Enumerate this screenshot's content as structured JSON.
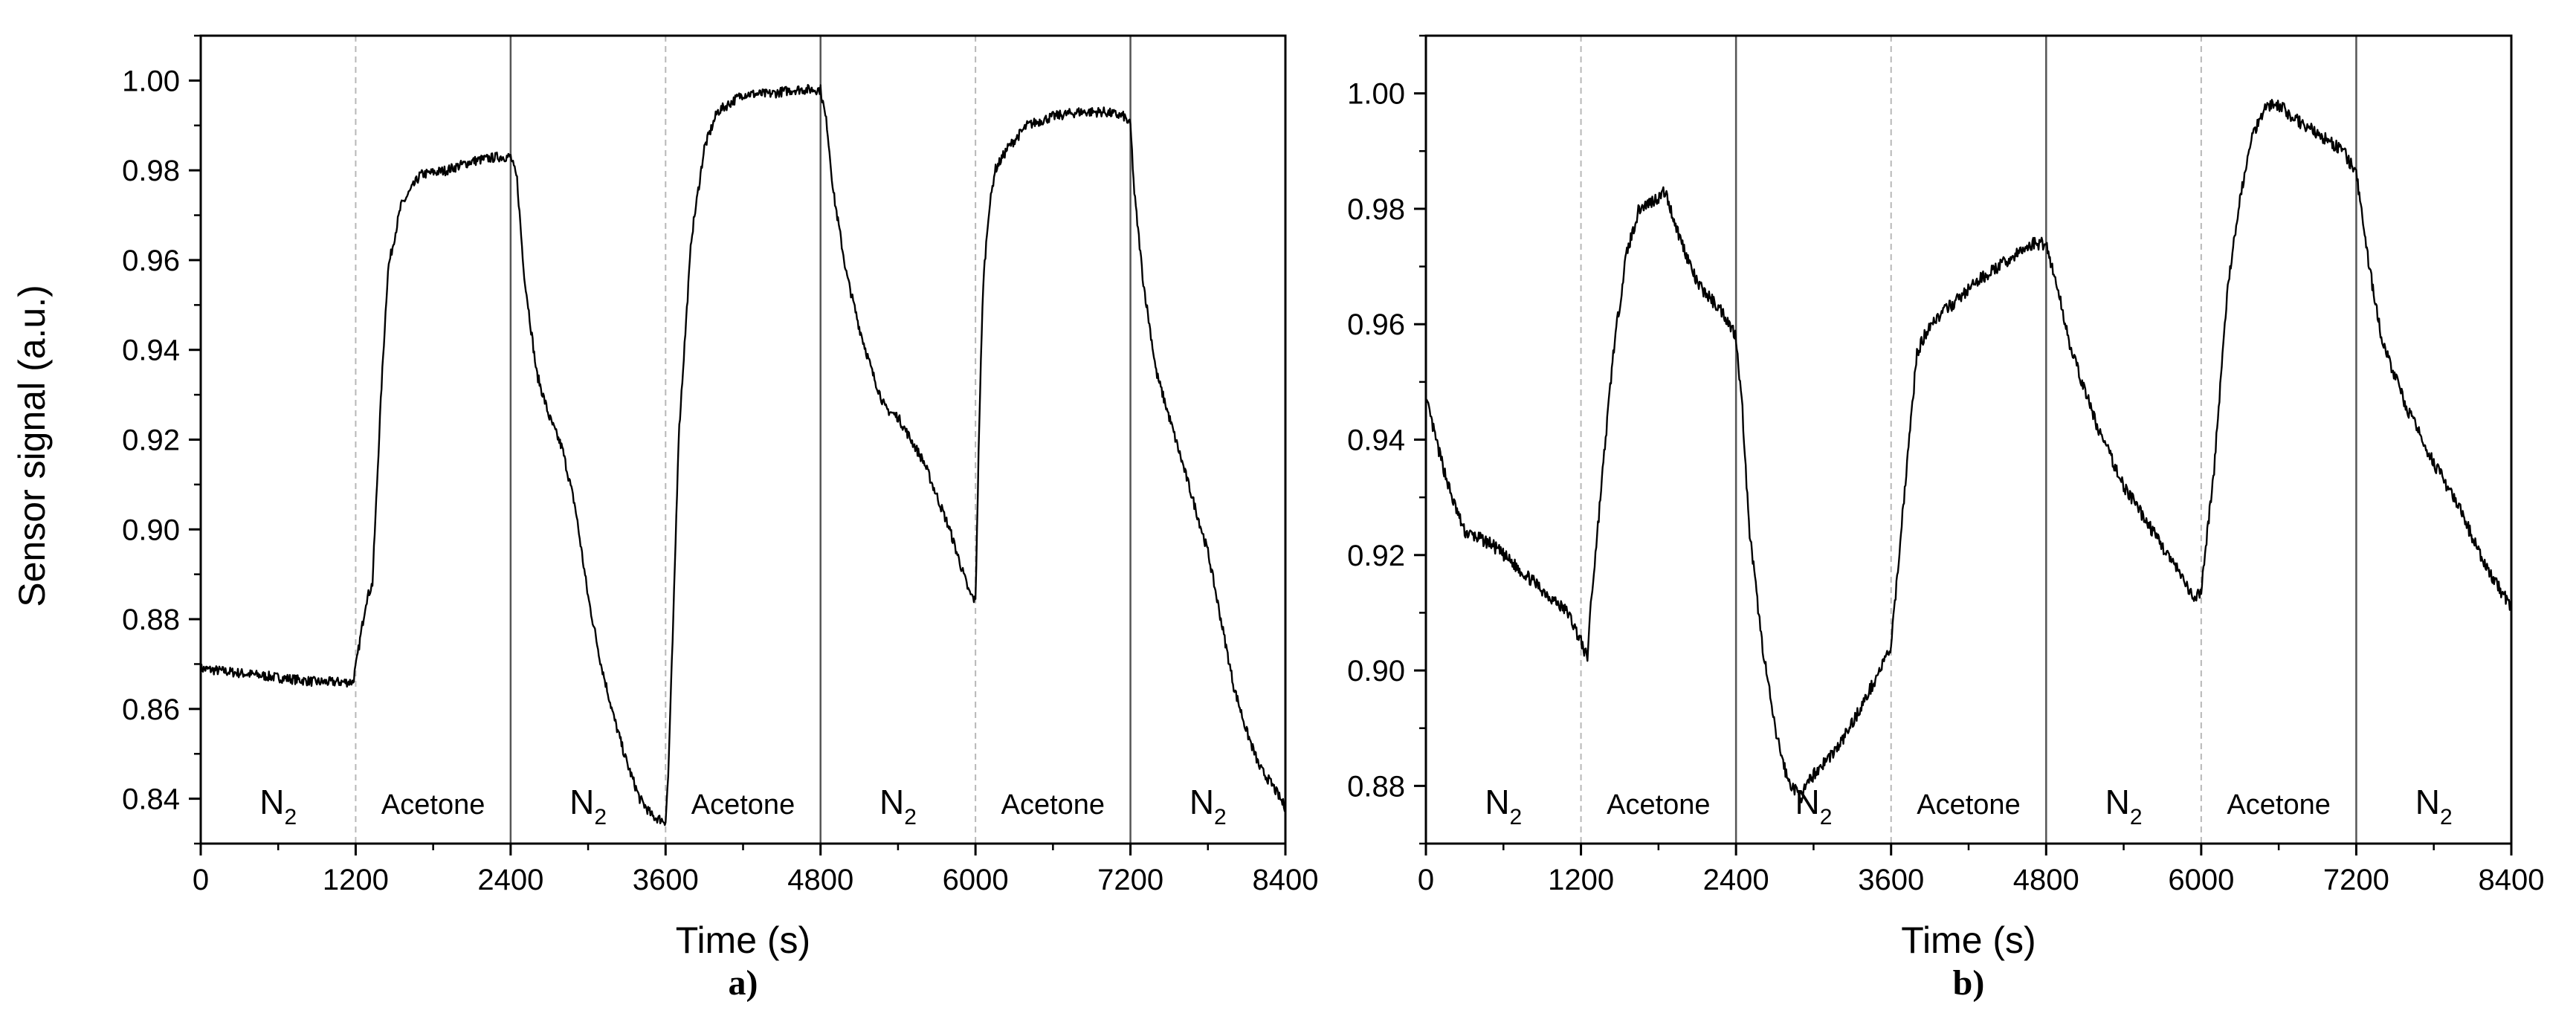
{
  "figure": {
    "y_axis_label": "Sensor signal (a.u.)"
  },
  "chart_data": [
    {
      "type": "line",
      "panel_label": "a)",
      "xlabel": "Time (s)",
      "ylabel": "Sensor signal (a.u.)",
      "xlim": [
        0,
        8400
      ],
      "ylim": [
        0.83,
        1.01
      ],
      "x_ticks": [
        0,
        1200,
        2400,
        3600,
        4800,
        6000,
        7200,
        8400
      ],
      "x_tick_labels": [
        "0",
        "1200",
        "2400",
        "3600",
        "4800",
        "6000",
        "7200",
        "8400"
      ],
      "y_ticks": [
        0.84,
        0.86,
        0.88,
        0.9,
        0.92,
        0.94,
        0.96,
        0.98,
        1.0
      ],
      "y_tick_labels": [
        "0.84",
        "0.86",
        "0.88",
        "0.90",
        "0.92",
        "0.94",
        "0.96",
        "0.98",
        "1.00"
      ],
      "grid": false,
      "dashed_vlines": [
        1200,
        3600,
        6000
      ],
      "solid_vlines": [
        2400,
        4800,
        7200
      ],
      "segments": [
        {
          "gas": "N",
          "sub": "2",
          "start": 0,
          "end": 1200
        },
        {
          "gas": "Acetone",
          "sub": "",
          "start": 1200,
          "end": 2400
        },
        {
          "gas": "N",
          "sub": "2",
          "start": 2400,
          "end": 3600
        },
        {
          "gas": "Acetone",
          "sub": "",
          "start": 3600,
          "end": 4800
        },
        {
          "gas": "N",
          "sub": "2",
          "start": 4800,
          "end": 6000
        },
        {
          "gas": "Acetone",
          "sub": "",
          "start": 6000,
          "end": 7200
        },
        {
          "gas": "N",
          "sub": "2",
          "start": 7200,
          "end": 8400
        }
      ],
      "series": [
        {
          "name": "sensor",
          "x": [
            0,
            300,
            600,
            900,
            1180,
            1210,
            1280,
            1330,
            1400,
            1450,
            1550,
            1700,
            1900,
            2100,
            2300,
            2400,
            2450,
            2500,
            2600,
            2700,
            2800,
            2900,
            3000,
            3100,
            3200,
            3300,
            3400,
            3500,
            3600,
            3620,
            3660,
            3700,
            3800,
            3900,
            4000,
            4200,
            4400,
            4600,
            4780,
            4800,
            4850,
            4900,
            5000,
            5100,
            5200,
            5300,
            5400,
            5600,
            5800,
            5950,
            6000,
            6030,
            6060,
            6100,
            6150,
            6250,
            6400,
            6600,
            6800,
            7000,
            7150,
            7200,
            7230,
            7300,
            7400,
            7500,
            7600,
            7700,
            7800,
            7900,
            8000,
            8100,
            8200,
            8300,
            8400
          ],
          "y": [
            0.869,
            0.868,
            0.867,
            0.866,
            0.866,
            0.871,
            0.884,
            0.888,
            0.932,
            0.958,
            0.972,
            0.979,
            0.98,
            0.982,
            0.983,
            0.983,
            0.978,
            0.958,
            0.935,
            0.925,
            0.918,
            0.905,
            0.885,
            0.87,
            0.858,
            0.848,
            0.84,
            0.836,
            0.835,
            0.845,
            0.88,
            0.92,
            0.965,
            0.985,
            0.993,
            0.997,
            0.997,
            0.998,
            0.998,
            0.998,
            0.99,
            0.975,
            0.957,
            0.945,
            0.935,
            0.927,
            0.925,
            0.915,
            0.9,
            0.886,
            0.884,
            0.925,
            0.955,
            0.97,
            0.98,
            0.985,
            0.99,
            0.992,
            0.993,
            0.993,
            0.992,
            0.99,
            0.975,
            0.955,
            0.935,
            0.925,
            0.915,
            0.905,
            0.895,
            0.88,
            0.865,
            0.855,
            0.847,
            0.843,
            0.838
          ]
        }
      ]
    },
    {
      "type": "line",
      "panel_label": "b)",
      "xlabel": "Time (s)",
      "ylabel": "",
      "xlim": [
        0,
        8400
      ],
      "ylim": [
        0.87,
        1.01
      ],
      "x_ticks": [
        0,
        1200,
        2400,
        3600,
        4800,
        6000,
        7200,
        8400
      ],
      "x_tick_labels": [
        "0",
        "1200",
        "2400",
        "3600",
        "4800",
        "6000",
        "7200",
        "8400"
      ],
      "y_ticks": [
        0.88,
        0.9,
        0.92,
        0.94,
        0.96,
        0.98,
        1.0
      ],
      "y_tick_labels": [
        "0.88",
        "0.90",
        "0.92",
        "0.94",
        "0.96",
        "0.98",
        "1.00"
      ],
      "grid": false,
      "dashed_vlines": [
        1200,
        3600,
        6000
      ],
      "solid_vlines": [
        2400,
        4800,
        7200
      ],
      "segments": [
        {
          "gas": "N",
          "sub": "2",
          "start": 0,
          "end": 1200
        },
        {
          "gas": "Acetone",
          "sub": "",
          "start": 1200,
          "end": 2400
        },
        {
          "gas": "N",
          "sub": "2",
          "start": 2400,
          "end": 3600
        },
        {
          "gas": "Acetone",
          "sub": "",
          "start": 3600,
          "end": 4800
        },
        {
          "gas": "N",
          "sub": "2",
          "start": 4800,
          "end": 6000
        },
        {
          "gas": "Acetone",
          "sub": "",
          "start": 6000,
          "end": 7200
        },
        {
          "gas": "N",
          "sub": "2",
          "start": 7200,
          "end": 8400
        }
      ],
      "series": [
        {
          "name": "sensor",
          "x": [
            0,
            100,
            200,
            300,
            500,
            700,
            900,
            1100,
            1200,
            1250,
            1270,
            1300,
            1350,
            1450,
            1550,
            1650,
            1800,
            1850,
            1950,
            2100,
            2300,
            2400,
            2450,
            2500,
            2600,
            2700,
            2800,
            2900,
            3000,
            3200,
            3400,
            3600,
            3700,
            3800,
            3900,
            4100,
            4300,
            4500,
            4700,
            4800,
            4900,
            5000,
            5200,
            5400,
            5600,
            5800,
            5950,
            6000,
            6100,
            6200,
            6300,
            6400,
            6500,
            6600,
            6700,
            6900,
            7100,
            7200,
            7300,
            7400,
            7600,
            7800,
            8000,
            8200,
            8400
          ],
          "y": [
            0.947,
            0.938,
            0.93,
            0.924,
            0.922,
            0.918,
            0.914,
            0.91,
            0.905,
            0.902,
            0.91,
            0.917,
            0.93,
            0.955,
            0.972,
            0.98,
            0.982,
            0.983,
            0.976,
            0.967,
            0.962,
            0.958,
            0.945,
            0.925,
            0.905,
            0.89,
            0.881,
            0.878,
            0.882,
            0.887,
            0.895,
            0.904,
            0.93,
            0.955,
            0.96,
            0.964,
            0.968,
            0.971,
            0.974,
            0.974,
            0.965,
            0.955,
            0.942,
            0.932,
            0.925,
            0.918,
            0.912,
            0.914,
            0.935,
            0.965,
            0.982,
            0.993,
            0.998,
            0.998,
            0.996,
            0.993,
            0.99,
            0.986,
            0.97,
            0.957,
            0.945,
            0.936,
            0.928,
            0.918,
            0.911
          ]
        }
      ]
    }
  ]
}
